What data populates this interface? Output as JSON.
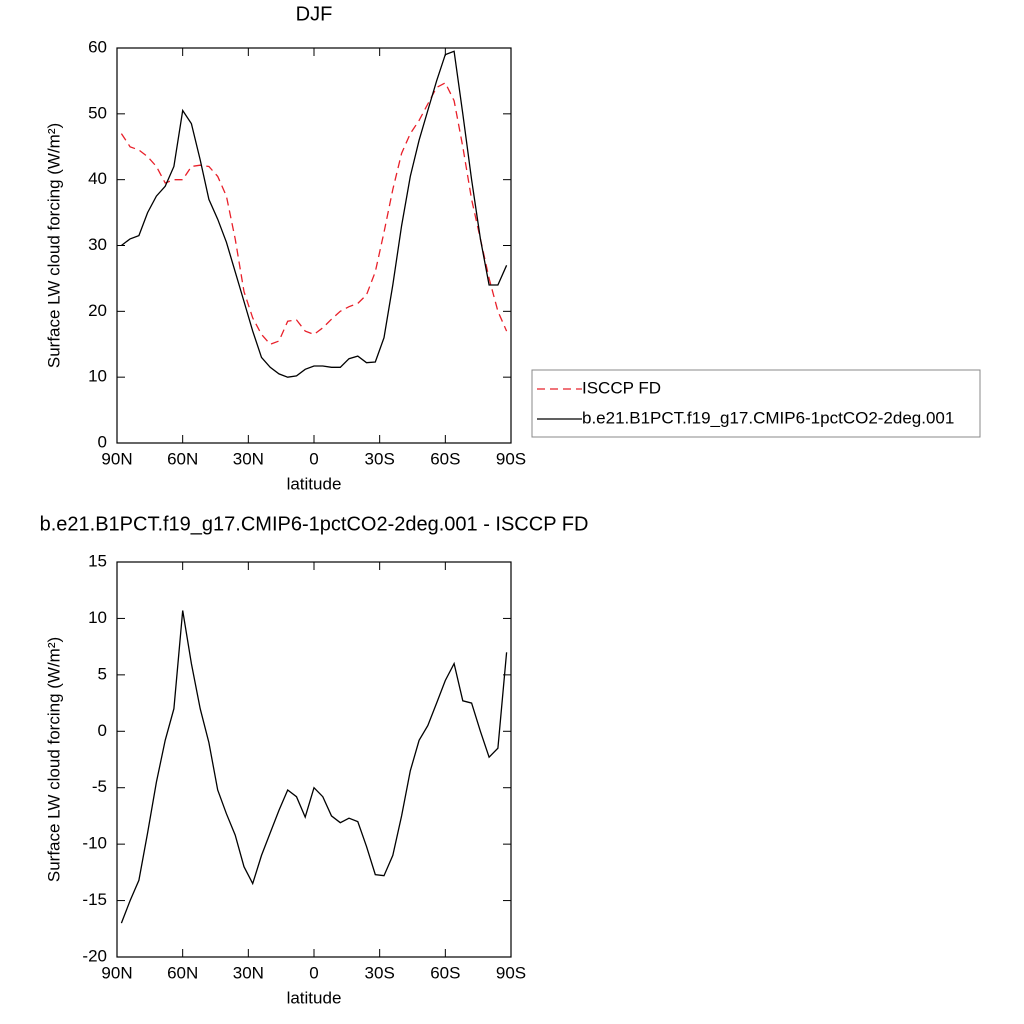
{
  "chart_data": [
    {
      "type": "line",
      "title": "DJF",
      "xlabel": "latitude",
      "ylabel": "Surface LW cloud forcing (W/m²)",
      "x": [
        88,
        84,
        80,
        76,
        72,
        68,
        64,
        60,
        56,
        52,
        48,
        44,
        40,
        36,
        32,
        28,
        24,
        20,
        16,
        12,
        8,
        4,
        0,
        -4,
        -8,
        -12,
        -16,
        -20,
        -24,
        -28,
        -32,
        -36,
        -40,
        -44,
        -48,
        -52,
        -56,
        -60,
        -64,
        -68,
        -72,
        -76,
        -80,
        -84,
        -88
      ],
      "series": [
        {
          "name": "ISCCP FD",
          "color": "#e8202a",
          "dash": true,
          "values": [
            47,
            45,
            44.5,
            43.5,
            42,
            39.5,
            40,
            40,
            42,
            42.2,
            42,
            40.5,
            37.5,
            31,
            23,
            19,
            16.5,
            15,
            15.5,
            18.5,
            18.7,
            17,
            16.5,
            17.5,
            18.8,
            20,
            20.7,
            21.2,
            22.5,
            26,
            32,
            38.5,
            44,
            47,
            49,
            51.5,
            54,
            54.7,
            52,
            45,
            37,
            31,
            25,
            20,
            17
          ]
        },
        {
          "name": "b.e21.B1PCT.f19_g17.CMIP6-1pctCO2-2deg.001",
          "color": "#000000",
          "dash": false,
          "values": [
            30,
            31,
            31.5,
            35,
            37.5,
            39,
            42,
            50.5,
            48.5,
            43,
            37,
            34,
            30.5,
            26,
            21.5,
            17,
            13,
            11.5,
            10.5,
            10,
            10.2,
            11.2,
            11.7,
            11.7,
            11.5,
            11.5,
            12.8,
            13.2,
            12.2,
            12.3,
            16,
            24,
            33,
            40.5,
            46,
            50.5,
            55,
            59,
            59.5,
            50,
            40,
            31,
            24,
            24,
            27
          ]
        }
      ],
      "xlim": [
        90,
        -90
      ],
      "xticks": [
        {
          "value": 90,
          "label": "90N"
        },
        {
          "value": 60,
          "label": "60N"
        },
        {
          "value": 30,
          "label": "30N"
        },
        0,
        {
          "value": -30,
          "label": "30S"
        },
        {
          "value": -60,
          "label": "60S"
        },
        {
          "value": -90,
          "label": "90S"
        }
      ],
      "ylim": [
        0,
        60
      ],
      "yticks": [
        0,
        10,
        20,
        30,
        40,
        50,
        60
      ],
      "legend": "right"
    },
    {
      "type": "line",
      "title": "b.e21.B1PCT.f19_g17.CMIP6-1pctCO2-2deg.001 - ISCCP FD",
      "xlabel": "latitude",
      "ylabel": "Surface LW cloud forcing (W/m²)",
      "x": [
        88,
        84,
        80,
        76,
        72,
        68,
        64,
        60,
        56,
        52,
        48,
        44,
        40,
        36,
        32,
        28,
        24,
        20,
        16,
        12,
        8,
        4,
        0,
        -4,
        -8,
        -12,
        -16,
        -20,
        -24,
        -28,
        -32,
        -36,
        -40,
        -44,
        -48,
        -52,
        -56,
        -60,
        -64,
        -68,
        -72,
        -76,
        -80,
        -84,
        -88
      ],
      "color": "#000000",
      "values": [
        -17,
        -15,
        -13.2,
        -9,
        -4.5,
        -0.8,
        2,
        10.7,
        6,
        2,
        -1,
        -5.2,
        -7.3,
        -9.2,
        -12,
        -13.5,
        -11,
        -9,
        -7,
        -5.2,
        -5.8,
        -7.6,
        -5,
        -5.8,
        -7.5,
        -8.1,
        -7.7,
        -8,
        -10.2,
        -12.7,
        -12.8,
        -11,
        -7.5,
        -3.5,
        -0.8,
        0.5,
        2.5,
        4.5,
        6,
        2.7,
        2.5,
        0,
        -2.3,
        -1.5,
        7
      ],
      "xlim": [
        90,
        -90
      ],
      "xticks": [
        {
          "value": 90,
          "label": "90N"
        },
        {
          "value": 60,
          "label": "60N"
        },
        {
          "value": 30,
          "label": "30N"
        },
        0,
        {
          "value": -30,
          "label": "30S"
        },
        {
          "value": -60,
          "label": "60S"
        },
        {
          "value": -90,
          "label": "90S"
        }
      ],
      "ylim": [
        -20,
        15
      ],
      "yticks": [
        -20,
        -15,
        -10,
        -5,
        0,
        5,
        10,
        15
      ]
    }
  ]
}
